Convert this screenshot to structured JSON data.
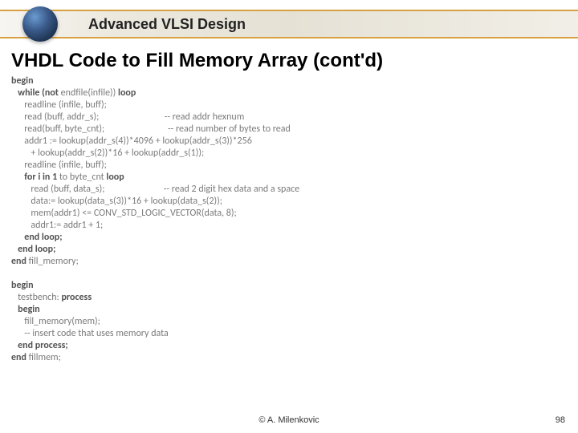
{
  "header": {
    "title": "Advanced VLSI Design",
    "title_fontsize": 18,
    "border_color": "#d8a040"
  },
  "slide": {
    "title": "VHDL Code to Fill Memory Array (cont'd)",
    "title_fontsize": 24
  },
  "code": {
    "fontsize": 12,
    "text_color": "#7a7a7a",
    "keyword_color": "#525252",
    "lines": [
      {
        "indent": 0,
        "keywords": [
          "begin"
        ],
        "rest": ""
      },
      {
        "indent": 1,
        "keywords": [
          "while (not"
        ],
        "rest": " endfile(infile)) ",
        "suffix_kw": "loop"
      },
      {
        "indent": 2,
        "keywords": [],
        "rest": "readline (infile, buff);"
      },
      {
        "indent": 2,
        "keywords": [],
        "rest": "read (buff, addr_s);",
        "comment": "-- read addr hexnum"
      },
      {
        "indent": 2,
        "keywords": [],
        "rest": "read(buff, byte_cnt);",
        "comment": "-- read number of bytes to read"
      },
      {
        "indent": 2,
        "keywords": [],
        "rest": "addr1 := lookup(addr_s(4))*4096 + lookup(addr_s(3))*256"
      },
      {
        "indent": 3,
        "keywords": [],
        "rest": "+ lookup(addr_s(2))*16 + lookup(addr_s(1));"
      },
      {
        "indent": 2,
        "keywords": [],
        "rest": "readline (infile, buff);"
      },
      {
        "indent": 2,
        "keywords": [
          "for i in 1"
        ],
        "rest": " to byte_cnt ",
        "suffix_kw": "loop"
      },
      {
        "indent": 3,
        "keywords": [],
        "rest": "read (buff, data_s);",
        "comment": "-- read 2 digit hex data and a space"
      },
      {
        "indent": 3,
        "keywords": [],
        "rest": "data:= lookup(data_s(3))*16 + lookup(data_s(2));"
      },
      {
        "indent": 3,
        "keywords": [],
        "rest": "mem(addr1) <= CONV_STD_LOGIC_VECTOR(data, 8);"
      },
      {
        "indent": 3,
        "keywords": [],
        "rest": "addr1:= addr1 + 1;"
      },
      {
        "indent": 2,
        "keywords": [
          "end loop;"
        ],
        "rest": ""
      },
      {
        "indent": 1,
        "keywords": [
          "end loop;"
        ],
        "rest": ""
      },
      {
        "indent": 0,
        "keywords": [
          "end"
        ],
        "rest": " fill_memory;"
      },
      {
        "indent": 0,
        "keywords": [],
        "rest": ""
      },
      {
        "indent": 0,
        "keywords": [
          "begin"
        ],
        "rest": ""
      },
      {
        "indent": 1,
        "keywords": [],
        "rest": "testbench: ",
        "suffix_kw": "process"
      },
      {
        "indent": 1,
        "keywords": [
          "begin"
        ],
        "rest": ""
      },
      {
        "indent": 2,
        "keywords": [],
        "rest": "fill_memory(mem);"
      },
      {
        "indent": 2,
        "keywords": [],
        "rest": "-- insert code that uses memory data"
      },
      {
        "indent": 1,
        "keywords": [
          "end process;"
        ],
        "rest": ""
      },
      {
        "indent": 0,
        "keywords": [
          "end"
        ],
        "rest": " fillmem;"
      }
    ]
  },
  "footer": {
    "copyright": "©  A. Milenkovic",
    "page_number": "98",
    "fontsize": 11
  },
  "colors": {
    "background": "#ffffff",
    "slide_title": "#000000",
    "footer_text": "#333333"
  }
}
